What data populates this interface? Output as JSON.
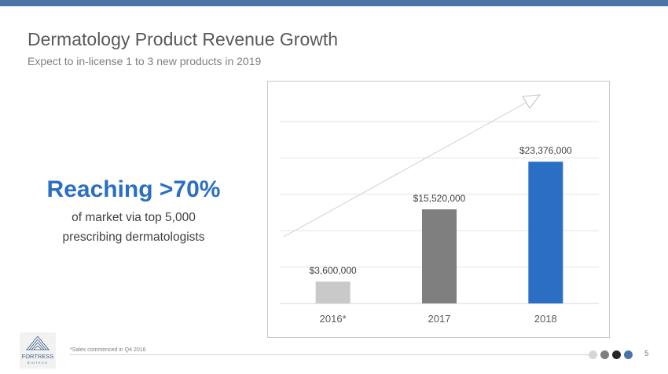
{
  "header": {
    "title": "Dermatology Product Revenue Growth",
    "subtitle": "Expect to in-license 1 to 3 new products in 2019"
  },
  "callout": {
    "headline": "Reaching >70%",
    "line1": "of market via top 5,000",
    "line2": "prescribing dermatologists"
  },
  "chart_data": {
    "type": "bar",
    "title": "",
    "xlabel": "",
    "ylabel": "",
    "categories": [
      "2016*",
      "2017",
      "2018"
    ],
    "values": [
      3600000,
      15520000,
      23376000
    ],
    "data_labels": [
      "$3,600,000",
      "$15,520,000",
      "$23,376,000"
    ],
    "bar_colors": [
      "#c9c9c9",
      "#7f7f7f",
      "#2a6fc4"
    ],
    "ylim": [
      0,
      30000000
    ],
    "gridlines": true,
    "trend_arrow": true
  },
  "footer": {
    "footnote": "*Sales commenced in Q4 2016",
    "page_number": "5",
    "logo_text": "FORTRESS",
    "logo_subtext": "BIOTECH",
    "dot_colors": [
      "#d6d6d6",
      "#7f7f7f",
      "#262626",
      "#4a74a6"
    ]
  },
  "colors": {
    "accent": "#2a6fc4",
    "top_bar": "#4a74a6"
  }
}
